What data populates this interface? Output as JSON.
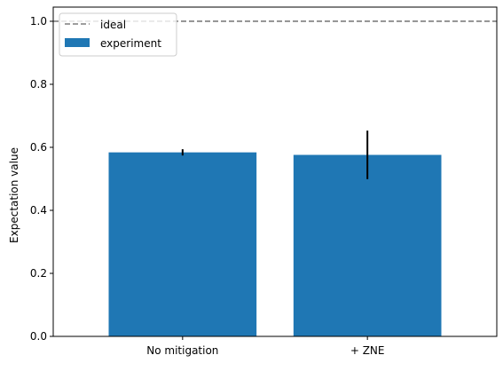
{
  "chart_data": {
    "type": "bar",
    "categories": [
      "No mitigation",
      "+ ZNE"
    ],
    "series": [
      {
        "name": "experiment",
        "values": [
          0.584,
          0.576
        ],
        "error": [
          0.01,
          0.077
        ]
      }
    ],
    "reference_lines": [
      {
        "name": "ideal",
        "y": 1.0,
        "style": "dashed"
      }
    ],
    "title": "",
    "xlabel": "",
    "ylabel": "Expectation value",
    "ylim": [
      0,
      1.045
    ],
    "yticks": [
      0.0,
      0.2,
      0.4,
      0.6,
      0.8,
      1.0
    ],
    "ytick_labels": [
      "0.0",
      "0.2",
      "0.4",
      "0.6",
      "0.8",
      "1.0"
    ],
    "grid": false,
    "legend_position": "top-left",
    "colors": {
      "bar": "#1f77b4",
      "ideal_line": "#7f7f7f",
      "error_bar": "#000000",
      "axes": "#000000"
    }
  }
}
